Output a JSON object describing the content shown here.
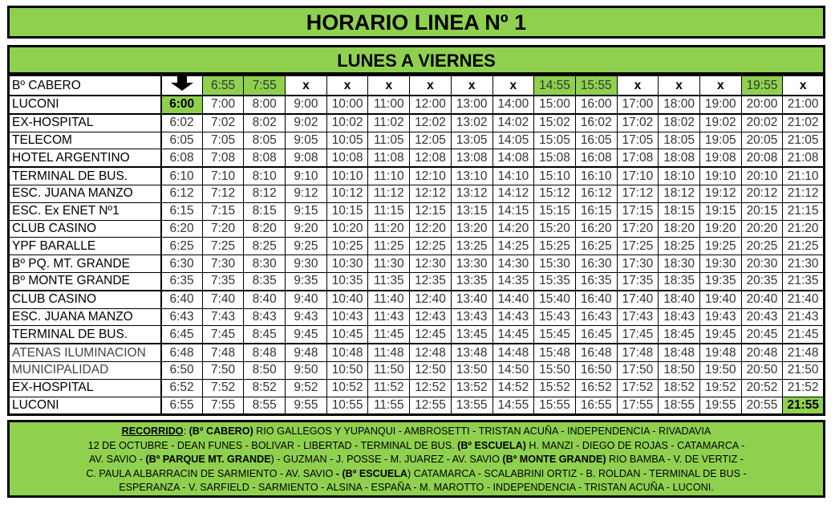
{
  "title": "HORARIO LINEA Nº 1",
  "subtitle": "LUNES A VIERNES",
  "header_row": {
    "stop": "Bº CABERO",
    "first": "arrow-down-icon",
    "cells": [
      "6:55",
      "7:55",
      "x",
      "x",
      "x",
      "x",
      "x",
      "x",
      "14:55",
      "15:55",
      "x",
      "x",
      "x",
      "19:55",
      "x"
    ],
    "highlighted": [
      0,
      1,
      8,
      9,
      13
    ]
  },
  "highlight_color": "#8fd14f",
  "rows": [
    {
      "stop": "LUCONI",
      "times": [
        "6:00",
        "7:00",
        "8:00",
        "9:00",
        "10:00",
        "11:00",
        "12:00",
        "13:00",
        "14:00",
        "15:00",
        "16:00",
        "17:00",
        "18:00",
        "19:00",
        "20:00",
        "21:00"
      ]
    },
    {
      "stop": "EX-HOSPITAL",
      "times": [
        "6:02",
        "7:02",
        "8:02",
        "9:02",
        "10:02",
        "11:02",
        "12:02",
        "13:02",
        "14:02",
        "15:02",
        "16:02",
        "17:02",
        "18:02",
        "19:02",
        "20:02",
        "21:02"
      ]
    },
    {
      "stop": "TELECOM",
      "times": [
        "6:05",
        "7:05",
        "8:05",
        "9:05",
        "10:05",
        "11:05",
        "12:05",
        "13:05",
        "14:05",
        "15:05",
        "16:05",
        "17:05",
        "18:05",
        "19:05",
        "20:05",
        "21:05"
      ]
    },
    {
      "stop": "HOTEL ARGENTINO",
      "times": [
        "6:08",
        "7:08",
        "8:08",
        "9:08",
        "10:08",
        "11:08",
        "12:08",
        "13:08",
        "14:08",
        "15:08",
        "16:08",
        "17:08",
        "18:08",
        "19:08",
        "20:08",
        "21:08"
      ]
    },
    {
      "stop": "TERMINAL DE BUS.",
      "times": [
        "6:10",
        "7:10",
        "8:10",
        "9:10",
        "10:10",
        "11:10",
        "12:10",
        "13:10",
        "14:10",
        "15:10",
        "16:10",
        "17:10",
        "18:10",
        "19:10",
        "20:10",
        "21:10"
      ]
    },
    {
      "stop": "ESC. JUANA MANZO",
      "times": [
        "6:12",
        "7:12",
        "8:12",
        "9:12",
        "10:12",
        "11:12",
        "12:12",
        "13:12",
        "14:12",
        "15:12",
        "16:12",
        "17:12",
        "18:12",
        "19:12",
        "20:12",
        "21:12"
      ]
    },
    {
      "stop": "ESC. Ex ENET Nº1",
      "times": [
        "6:15",
        "7:15",
        "8:15",
        "9:15",
        "10:15",
        "11:15",
        "12:15",
        "13:15",
        "14:15",
        "15:15",
        "16:15",
        "17:15",
        "18:15",
        "19:15",
        "20:15",
        "21:15"
      ]
    },
    {
      "stop": "CLUB CASINO",
      "times": [
        "6:20",
        "7:20",
        "8:20",
        "9:20",
        "10:20",
        "11:20",
        "12:20",
        "13:20",
        "14:20",
        "15:20",
        "16:20",
        "17:20",
        "18:20",
        "19:20",
        "20:20",
        "21:20"
      ]
    },
    {
      "stop": "YPF BARALLE",
      "times": [
        "6:25",
        "7:25",
        "8:25",
        "9:25",
        "10:25",
        "11:25",
        "12:25",
        "13:25",
        "14:25",
        "15:25",
        "16:25",
        "17:25",
        "18:25",
        "19:25",
        "20:25",
        "21:25"
      ]
    },
    {
      "stop": "Bº PQ. MT. GRANDE",
      "times": [
        "6:30",
        "7:30",
        "8:30",
        "9:30",
        "10:30",
        "11:30",
        "12:30",
        "13:30",
        "14:30",
        "15:30",
        "16:30",
        "17:30",
        "18:30",
        "19:30",
        "20:30",
        "21:30"
      ]
    },
    {
      "stop": "Bº MONTE GRANDE",
      "times": [
        "6:35",
        "7:35",
        "8:35",
        "9:35",
        "10:35",
        "11:35",
        "12:35",
        "13:35",
        "14:35",
        "15:35",
        "16:35",
        "17:35",
        "18:35",
        "19:35",
        "20:35",
        "21:35"
      ]
    },
    {
      "stop": "CLUB CASINO",
      "times": [
        "6:40",
        "7:40",
        "8:40",
        "9:40",
        "10:40",
        "11:40",
        "12:40",
        "13:40",
        "14:40",
        "15:40",
        "16:40",
        "17:40",
        "18:40",
        "19:40",
        "20:40",
        "21:40"
      ]
    },
    {
      "stop": "ESC. JUANA MANZO",
      "times": [
        "6:43",
        "7:43",
        "8:43",
        "9:43",
        "10:43",
        "11:43",
        "12:43",
        "13:43",
        "14:43",
        "15:43",
        "16:43",
        "17:43",
        "18:43",
        "19:43",
        "20:43",
        "21:43"
      ]
    },
    {
      "stop": "TERMINAL DE BUS.",
      "times": [
        "6:45",
        "7:45",
        "8:45",
        "9:45",
        "10:45",
        "11:45",
        "12:45",
        "13:45",
        "14:45",
        "15:45",
        "16:45",
        "17:45",
        "18:45",
        "19:45",
        "20:45",
        "21:45"
      ]
    },
    {
      "stop": "ATENAS ILUMINACION",
      "times": [
        "6:48",
        "7:48",
        "8:48",
        "9:48",
        "10:48",
        "11:48",
        "12:48",
        "13:48",
        "14:48",
        "15:48",
        "16:48",
        "17:48",
        "18:48",
        "19:48",
        "20:48",
        "21:48"
      ]
    },
    {
      "stop": "MUNICIPALIDAD",
      "times": [
        "6:50",
        "7:50",
        "8:50",
        "9:50",
        "10:50",
        "11:50",
        "12:50",
        "13:50",
        "14:50",
        "15:50",
        "16:50",
        "17:50",
        "18:50",
        "19:50",
        "20:50",
        "21:50"
      ]
    },
    {
      "stop": "EX-HOSPITAL",
      "times": [
        "6:52",
        "7:52",
        "8:52",
        "9:52",
        "10:52",
        "11:52",
        "12:52",
        "13:52",
        "14:52",
        "15:52",
        "16:52",
        "17:52",
        "18:52",
        "19:52",
        "20:52",
        "21:52"
      ]
    },
    {
      "stop": "LUCONI",
      "times": [
        "6:55",
        "7:55",
        "8:55",
        "9:55",
        "10:55",
        "11:55",
        "12:55",
        "13:55",
        "14:55",
        "15:55",
        "16:55",
        "17:55",
        "18:55",
        "19:55",
        "20:55",
        "21:55"
      ]
    }
  ],
  "route": {
    "label": "RECORRIDO",
    "lines": [
      [
        [
          "n",
          ": "
        ],
        [
          "b",
          "(Bº CABERO)"
        ],
        [
          "n",
          " RIO GALLEGOS Y YUPANQUI - AMBROSETTI - TRISTAN ACUÑA - INDEPENDENCIA - RIVADAVIA"
        ]
      ],
      [
        [
          "n",
          "12 DE OCTUBRE - DEAN FUNES - BOLIVAR - LIBERTAD - TERMINAL DE BUS. "
        ],
        [
          "b",
          "(Bº ESCUELA)"
        ],
        [
          "n",
          " H. MANZI - DIEGO DE ROJAS - CATAMARCA -"
        ]
      ],
      [
        [
          "n",
          "AV. SAVIO - "
        ],
        [
          "b",
          "(Bº PARQUE MT. GRANDE"
        ],
        [
          "n",
          ") - GUZMAN - J. POSSE - M. JUAREZ - AV. SAVIO "
        ],
        [
          "b",
          "(Bº MONTE GRANDE)"
        ],
        [
          "n",
          " RIO BAMBA -  V. DE VERTIZ -"
        ]
      ],
      [
        [
          "n",
          "C. PAULA ALBARRACIN DE SARMIENTO - AV. SAVIO "
        ],
        [
          "b",
          "- (Bº ESCUELA"
        ],
        [
          "n",
          ") CATAMARCA - SCALABRINI ORTIZ - B. ROLDAN - TERMINAL DE BUS -"
        ]
      ],
      [
        [
          "n",
          "ESPERANZA - V. SARFIELD - SARMIENTO - ALSINA - ESPAÑA - M. MAROTTO - INDEPENDENCIA - TRISTAN ACUÑA - LUCONI."
        ]
      ]
    ]
  }
}
